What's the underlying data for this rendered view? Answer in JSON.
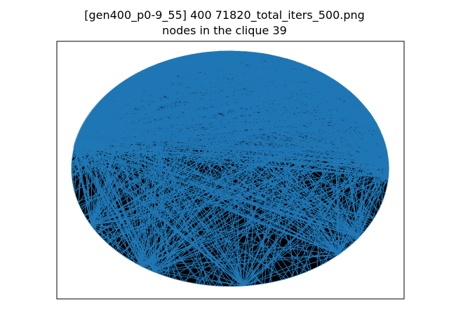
{
  "figure": {
    "title_line1": "[gen400_p0-9_55] 400 71820_total_iters_500.png",
    "title_line2": "nodes in the clique 39"
  },
  "graph": {
    "type": "circular-graph",
    "node_count": 400,
    "clique_size": 39,
    "background_edge_color": "#000000",
    "clique_edge_color": "#1f77b4",
    "node_color": "#1f77b4"
  }
}
